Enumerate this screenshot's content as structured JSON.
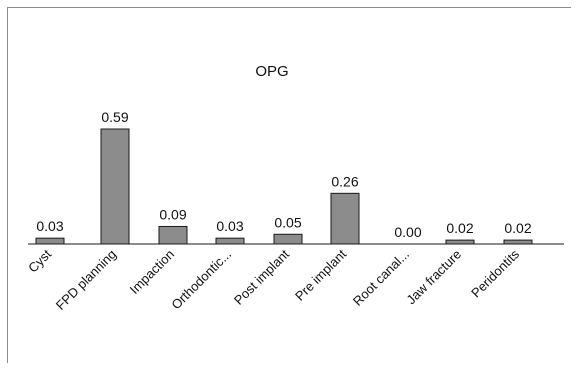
{
  "chart_data": {
    "type": "bar",
    "title": "OPG",
    "categories": [
      "Cyst",
      "FPD planning",
      "Impaction",
      "Orthodontic...",
      "Post implant",
      "Pre implant",
      "Root canal...",
      "Jaw fracture",
      "Peridontits"
    ],
    "values": [
      0.03,
      0.59,
      0.09,
      0.03,
      0.05,
      0.26,
      0.0,
      0.02,
      0.02
    ],
    "value_labels": [
      "0.03",
      "0.59",
      "0.09",
      "0.03",
      "0.05",
      "0.26",
      "0.00",
      "0.02",
      "0.02"
    ],
    "ylim": [
      0,
      0.59
    ],
    "grid": false,
    "legend": "none",
    "colors": {
      "bar": "#8c8c8c",
      "bar_stroke": "#1a1a1a",
      "axis": "#1a1a1a"
    }
  }
}
